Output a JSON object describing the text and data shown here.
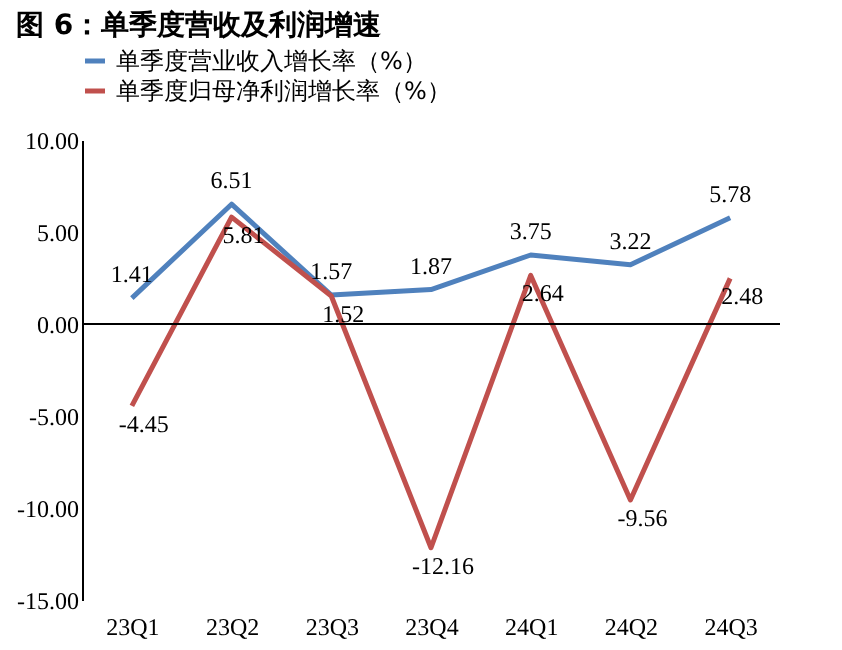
{
  "chart_data": {
    "type": "line",
    "title": "图 6：单季度营收及利润增速",
    "categories": [
      "23Q1",
      "23Q2",
      "23Q3",
      "23Q4",
      "24Q1",
      "24Q2",
      "24Q3"
    ],
    "series": [
      {
        "name": "单季度营业收入增长率（%）",
        "color": "#4f81bd",
        "values": [
          1.41,
          6.51,
          1.57,
          1.87,
          3.75,
          3.22,
          5.78
        ]
      },
      {
        "name": "单季度归母净利润增长率（%）",
        "color": "#c0504d",
        "values": [
          -4.45,
          5.81,
          1.52,
          -12.16,
          2.64,
          -9.56,
          2.48
        ]
      }
    ],
    "ylim": [
      -15,
      10
    ],
    "yticks": [
      {
        "value": -15,
        "label": "-15.00"
      },
      {
        "value": -10,
        "label": "-10.00"
      },
      {
        "value": -5,
        "label": "-5.00"
      },
      {
        "value": 0,
        "label": "0.00"
      },
      {
        "value": 5,
        "label": "5.00"
      },
      {
        "value": 10,
        "label": "10.00"
      }
    ],
    "ref_lines": [
      {
        "axis": "y",
        "value": 0,
        "color": "#000000"
      }
    ],
    "data_labels": true,
    "grid": false,
    "legend": "top",
    "marker": "none",
    "line_style": "solid"
  }
}
